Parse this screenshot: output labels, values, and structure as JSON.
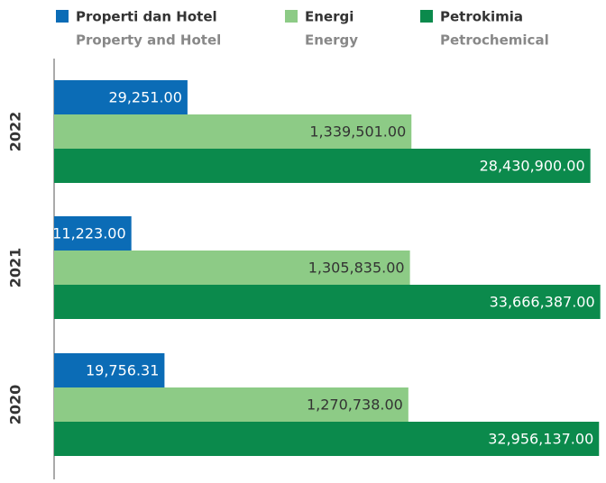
{
  "chart_data": {
    "type": "hbar",
    "categories": [
      "2022",
      "2021",
      "2020"
    ],
    "series": [
      {
        "name": "Properti dan Hotel",
        "name_en": "Property and Hotel",
        "color": "#0b6cb6",
        "values": [
          29251,
          11223,
          19756.31
        ],
        "value_labels": [
          "29,251.00",
          "11,223.00",
          "19,756.31"
        ],
        "label_color": "#ffffff"
      },
      {
        "name": "Energi",
        "name_en": "Energy",
        "color": "#8dcb86",
        "values": [
          1339501,
          1305835,
          1270738
        ],
        "value_labels": [
          "1,339,501.00",
          "1,305,835.00",
          "1,270,738.00"
        ],
        "label_color": "#333333"
      },
      {
        "name": "Petrokimia",
        "name_en": "Petrochemical",
        "color": "#0b8a4c",
        "values": [
          28430900,
          33666387,
          32956137
        ],
        "value_labels": [
          "28,430,900.00",
          "33,666,387.00",
          "32,956,137.00"
        ],
        "label_color": "#ffffff"
      }
    ],
    "xlim": [
      3000,
      36000000
    ],
    "log_scale": true
  }
}
